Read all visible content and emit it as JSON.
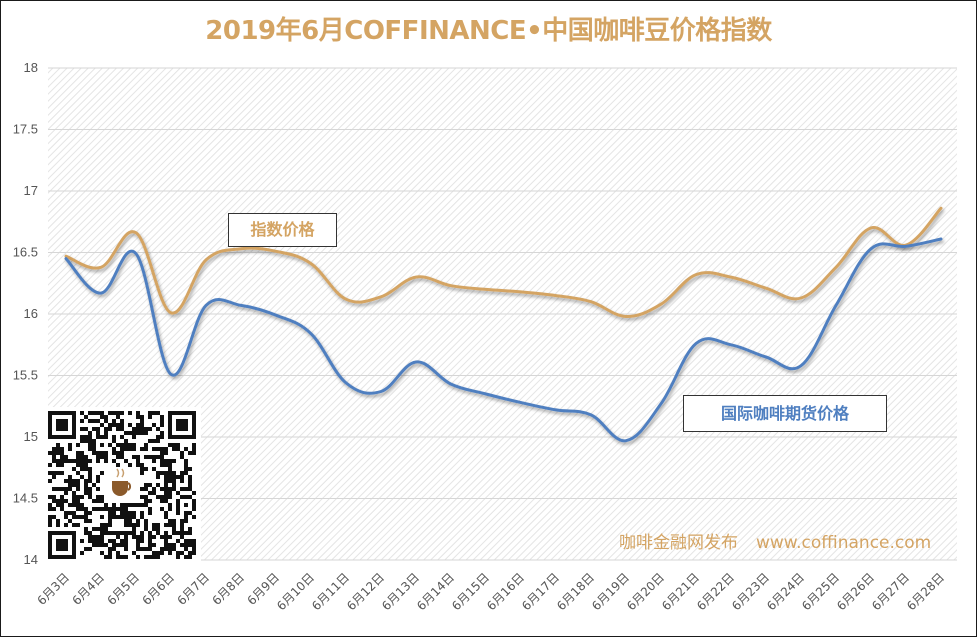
{
  "chart_data": {
    "type": "line",
    "title": "2019年6月COFFINANCE•中国咖啡豆价格指数",
    "xlabel": "",
    "ylabel": "",
    "ylim": [
      14,
      18
    ],
    "yticks": [
      "14",
      "14.5",
      "15",
      "15.5",
      "16",
      "16.5",
      "17",
      "17.5",
      "18"
    ],
    "grid": true,
    "categories": [
      "6月3日",
      "6月4日",
      "6月5日",
      "6月6日",
      "6月7日",
      "6月8日",
      "6月9日",
      "6月10日",
      "6月11日",
      "6月12日",
      "6月13日",
      "6月14日",
      "6月15日",
      "6月16日",
      "6月17日",
      "6月18日",
      "6月19日",
      "6月20日",
      "6月21日",
      "6月22日",
      "6月23日",
      "6月24日",
      "6月25日",
      "6月26日",
      "6月27日",
      "6月28日"
    ],
    "series": [
      {
        "name": "指数价格",
        "color": "#d4a463",
        "values": [
          16.47,
          16.38,
          16.66,
          16.01,
          16.44,
          16.53,
          16.51,
          16.41,
          16.12,
          16.14,
          16.3,
          16.23,
          16.2,
          16.18,
          16.15,
          16.1,
          15.98,
          16.08,
          16.32,
          16.3,
          16.21,
          16.13,
          16.38,
          16.7,
          16.56,
          16.86
        ]
      },
      {
        "name": "国际咖啡期货价格",
        "color": "#4f7fc0",
        "values": [
          16.45,
          16.17,
          16.49,
          15.51,
          16.07,
          16.07,
          15.99,
          15.84,
          15.44,
          15.37,
          15.61,
          15.43,
          15.35,
          15.28,
          15.22,
          15.18,
          14.97,
          15.27,
          15.76,
          15.75,
          15.65,
          15.58,
          16.07,
          16.53,
          16.55,
          16.61
        ]
      }
    ],
    "annotations": [
      "指数价格",
      "国际咖啡期货价格"
    ]
  },
  "watermark": {
    "publisher": "咖啡金融网发布",
    "url": "www.coffinance.com"
  },
  "qr_code": {
    "icon": "qr-code-icon",
    "logo_icon": "coffee-cup-logo-icon"
  }
}
